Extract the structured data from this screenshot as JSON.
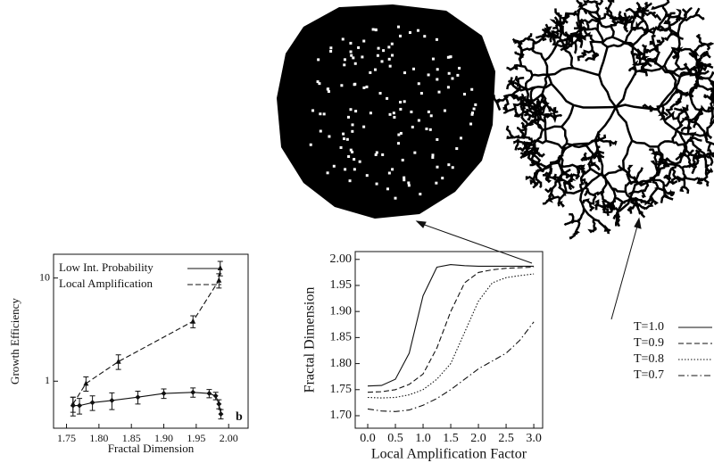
{
  "chart_data": [
    {
      "type": "line",
      "xlabel": "Fractal Dimension",
      "ylabel": "Growth Efficiency",
      "annotation": "b",
      "log_y": true,
      "legend": "top-left",
      "xlim": [
        1.73,
        2.03
      ],
      "ylim": [
        0.35,
        17
      ],
      "xticks": [
        1.75,
        {
          "value": 1.8,
          "label": "1.80"
        },
        1.85,
        {
          "value": 1.9,
          "label": "1.90"
        },
        1.95,
        {
          "value": 2.0,
          "label": "2.00"
        }
      ],
      "yticks": [
        1,
        10
      ],
      "series": [
        {
          "name": "Low Int. Probability",
          "color": "#111",
          "dash": "solid",
          "marker": "diamond",
          "x": [
            1.76,
            1.77,
            1.79,
            1.82,
            1.86,
            1.9,
            1.945,
            1.97,
            1.98,
            1.985,
            1.988
          ],
          "values": [
            0.58,
            0.58,
            0.62,
            0.65,
            0.7,
            0.76,
            0.78,
            0.76,
            0.72,
            0.6,
            0.48
          ],
          "errors": [
            0.12,
            0.1,
            0.1,
            0.12,
            0.1,
            0.08,
            0.08,
            0.07,
            0.06,
            0.06,
            0.05
          ]
        },
        {
          "name": "Local Amplification",
          "color": "#111",
          "dash": "dashed",
          "marker": "triangle",
          "x": [
            1.76,
            1.78,
            1.83,
            1.945,
            1.985,
            1.987
          ],
          "values": [
            0.6,
            0.95,
            1.55,
            3.8,
            9.5,
            12.5
          ],
          "errors": [
            0.1,
            0.15,
            0.25,
            0.5,
            1.5,
            2.0
          ]
        }
      ]
    },
    {
      "type": "line",
      "xlabel": "Local Amplification Factor",
      "ylabel": "Fractal Dimension",
      "log_y": false,
      "legend": "outside-right",
      "xlim": [
        -0.226,
        3.16
      ],
      "ylim": [
        1.676,
        2.015
      ],
      "xticks": [
        {
          "value": 0,
          "label": "0.0"
        },
        0.5,
        {
          "value": 1,
          "label": "1.0"
        },
        1.5,
        {
          "value": 2,
          "label": "2.0"
        },
        2.5,
        {
          "value": 3,
          "label": "3.0"
        }
      ],
      "yticks": [
        {
          "value": 1.7,
          "label": "1.70"
        },
        1.75,
        {
          "value": 1.8,
          "label": "1.80"
        },
        1.85,
        {
          "value": 1.9,
          "label": "1.90"
        },
        1.95,
        {
          "value": 2.0,
          "label": "2.00"
        }
      ],
      "x": [
        0,
        0.25,
        0.5,
        0.75,
        1,
        1.25,
        1.5,
        1.75,
        2,
        2.25,
        2.5,
        2.75,
        3
      ],
      "series": [
        {
          "name": "T=1.0",
          "color": "#111",
          "dash": "solid",
          "values": [
            1.757,
            1.758,
            1.77,
            1.82,
            1.93,
            1.985,
            1.99,
            1.988,
            1.987,
            1.987,
            1.987,
            1.987,
            1.987
          ]
        },
        {
          "name": "T=0.9",
          "color": "#111",
          "dash": "dashed",
          "values": [
            1.745,
            1.746,
            1.75,
            1.76,
            1.78,
            1.83,
            1.9,
            1.955,
            1.975,
            1.98,
            1.983,
            1.984,
            1.985
          ]
        },
        {
          "name": "T=0.8",
          "color": "#111",
          "dash": "dotted",
          "values": [
            1.735,
            1.734,
            1.735,
            1.74,
            1.75,
            1.77,
            1.8,
            1.86,
            1.92,
            1.955,
            1.965,
            1.969,
            1.972
          ]
        },
        {
          "name": "T=0.7",
          "color": "#111",
          "dash": "dashdot",
          "values": [
            1.713,
            1.709,
            1.708,
            1.711,
            1.72,
            1.733,
            1.75,
            1.77,
            1.79,
            1.805,
            1.82,
            1.845,
            1.88
          ]
        }
      ]
    }
  ]
}
